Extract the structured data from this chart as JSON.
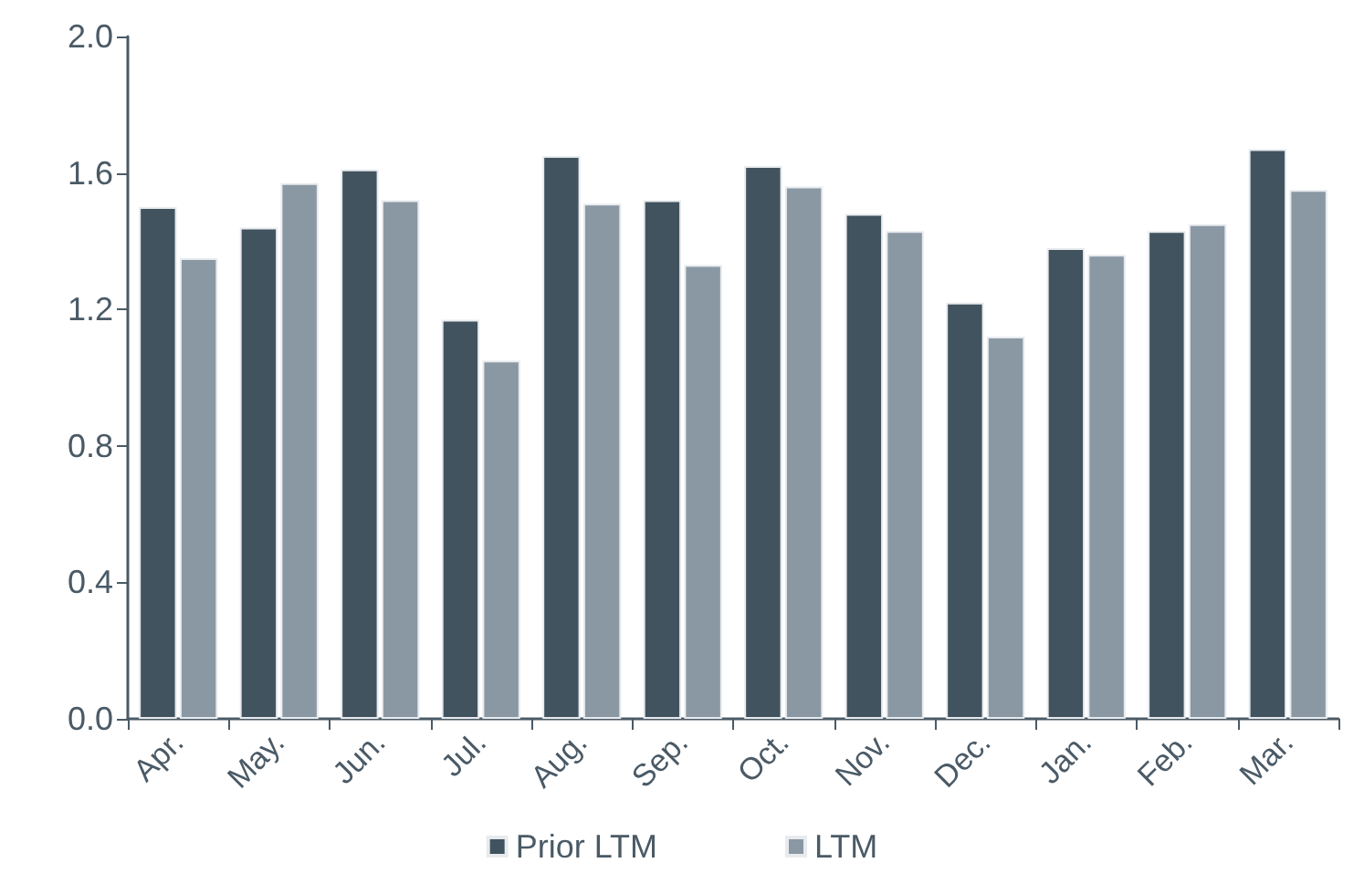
{
  "chart_data": {
    "type": "bar",
    "categories": [
      "Apr.",
      "May.",
      "Jun.",
      "Jul.",
      "Aug.",
      "Sep.",
      "Oct.",
      "Nov.",
      "Dec.",
      "Jan.",
      "Feb.",
      "Mar."
    ],
    "series": [
      {
        "name": "Prior LTM",
        "color": "#41535f",
        "values": [
          1.5,
          1.44,
          1.61,
          1.17,
          1.65,
          1.52,
          1.62,
          1.48,
          1.22,
          1.38,
          1.43,
          1.67
        ]
      },
      {
        "name": "LTM",
        "color": "#8a98a4",
        "values": [
          1.35,
          1.57,
          1.52,
          1.05,
          1.51,
          1.33,
          1.56,
          1.43,
          1.12,
          1.36,
          1.45,
          1.55
        ]
      }
    ],
    "ylim": [
      0,
      2
    ],
    "yticks": [
      {
        "value": 0,
        "label": "0.0"
      },
      0.4,
      0.8,
      1.2,
      1.6,
      {
        "value": 2,
        "label": "2.0"
      }
    ],
    "grid": false,
    "legend": "bottom"
  }
}
